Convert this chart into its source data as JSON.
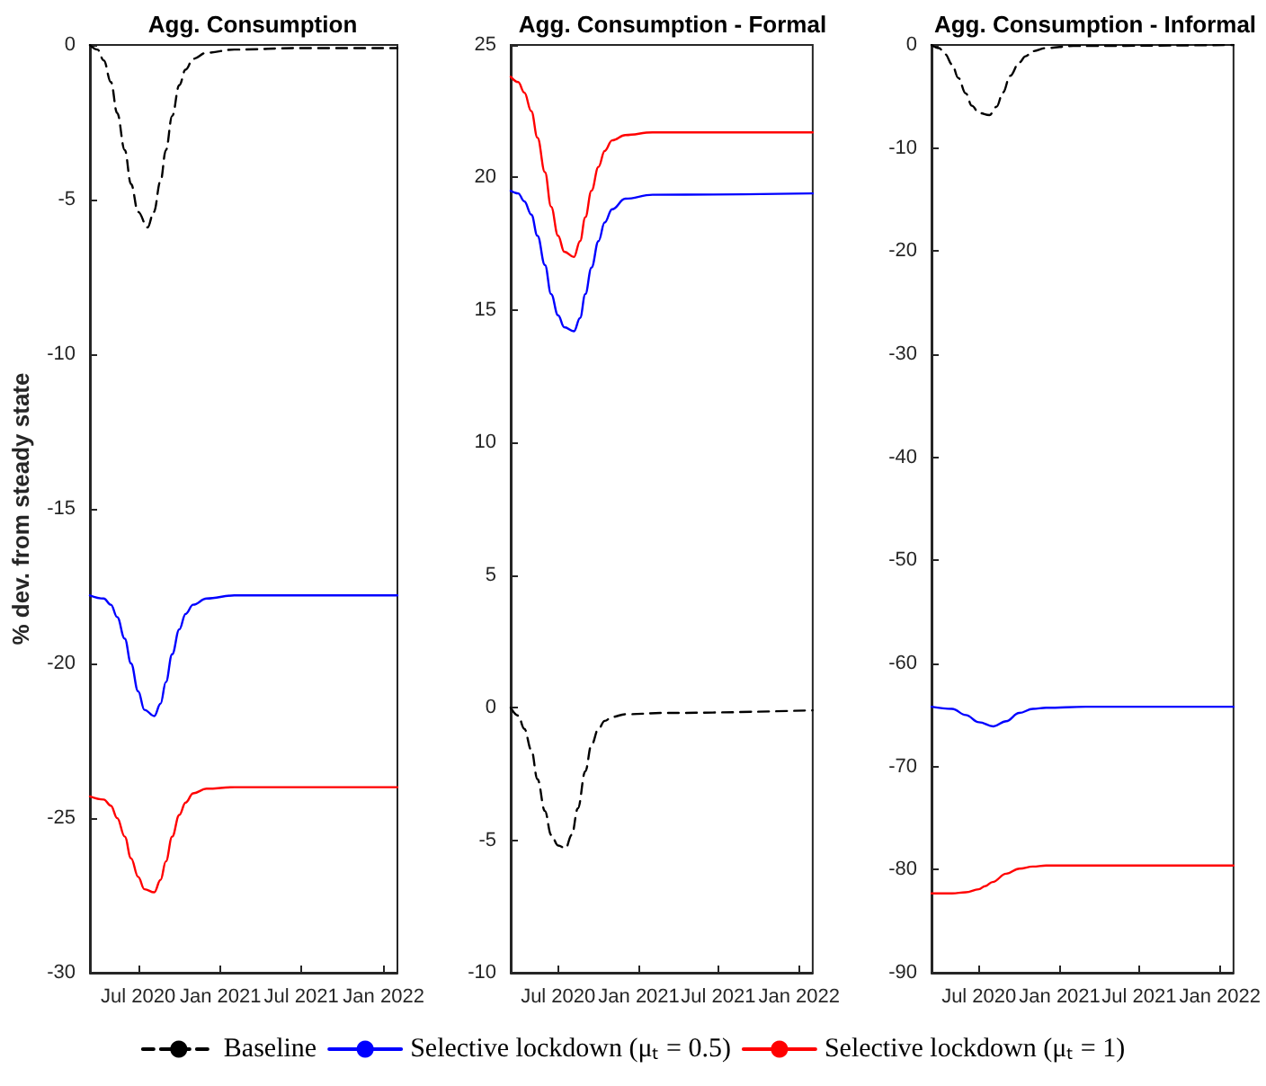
{
  "chart_data": [
    {
      "type": "line",
      "title": "Agg. Consumption",
      "ylabel": "% dev. from steady state",
      "xlim": [
        "2020-03-15",
        "2022-02-01"
      ],
      "xticks": [
        {
          "value": "2020-07-01",
          "label": "Jul 2020"
        },
        {
          "value": "2021-01-01",
          "label": "Jan 2021"
        },
        {
          "value": "2021-07-01",
          "label": "Jul 2021"
        },
        {
          "value": "2022-01-01",
          "label": "Jan 2022"
        }
      ],
      "ylim": [
        -30,
        0
      ],
      "yticks": [
        -30,
        -25,
        -20,
        -15,
        -10,
        -5,
        0
      ],
      "legend": "bottom",
      "series": [
        {
          "name": "Baseline",
          "color": "#000000",
          "line_style": "dashed",
          "x": [
            "2020-03-15",
            "2020-04-01",
            "2020-04-15",
            "2020-05-01",
            "2020-05-15",
            "2020-06-01",
            "2020-06-15",
            "2020-07-01",
            "2020-07-22",
            "2020-08-05",
            "2020-08-20",
            "2020-09-01",
            "2020-09-15",
            "2020-10-01",
            "2020-10-15",
            "2020-11-01",
            "2020-12-01",
            "2021-02-01",
            "2021-07-01",
            "2022-02-01"
          ],
          "values": [
            0,
            -0.15,
            -0.5,
            -1.2,
            -2.2,
            -3.4,
            -4.5,
            -5.4,
            -5.9,
            -5.4,
            -4.4,
            -3.4,
            -2.3,
            -1.3,
            -0.8,
            -0.45,
            -0.25,
            -0.15,
            -0.1,
            -0.1
          ]
        },
        {
          "name": "Selective lockdown (μₜ = 0.5)",
          "color": "#0000ff",
          "line_style": "solid",
          "x": [
            "2020-03-15",
            "2020-04-15",
            "2020-05-01",
            "2020-05-15",
            "2020-06-01",
            "2020-06-15",
            "2020-07-01",
            "2020-07-15",
            "2020-08-06",
            "2020-08-20",
            "2020-09-01",
            "2020-09-15",
            "2020-10-01",
            "2020-10-15",
            "2020-11-01",
            "2020-12-01",
            "2021-02-01",
            "2022-02-01"
          ],
          "values": [
            -17.8,
            -17.9,
            -18.1,
            -18.5,
            -19.2,
            -20,
            -20.9,
            -21.5,
            -21.7,
            -21.3,
            -20.6,
            -19.7,
            -18.9,
            -18.4,
            -18.1,
            -17.9,
            -17.8,
            -17.8
          ]
        },
        {
          "name": "Selective lockdown (μₜ = 1)",
          "color": "#ff0000",
          "line_style": "solid",
          "x": [
            "2020-03-15",
            "2020-04-15",
            "2020-05-01",
            "2020-05-15",
            "2020-06-01",
            "2020-06-15",
            "2020-07-01",
            "2020-07-15",
            "2020-08-06",
            "2020-08-20",
            "2020-09-01",
            "2020-09-15",
            "2020-10-01",
            "2020-10-15",
            "2020-11-01",
            "2020-12-01",
            "2021-02-01",
            "2022-02-01"
          ],
          "values": [
            -24.3,
            -24.4,
            -24.6,
            -25,
            -25.6,
            -26.3,
            -26.9,
            -27.3,
            -27.4,
            -27,
            -26.4,
            -25.6,
            -24.9,
            -24.5,
            -24.2,
            -24.05,
            -24,
            -24
          ]
        }
      ]
    },
    {
      "type": "line",
      "title": "Agg. Consumption - Formal",
      "xlim": [
        "2020-03-15",
        "2022-02-01"
      ],
      "xticks": [
        {
          "value": "2020-07-01",
          "label": "Jul 2020"
        },
        {
          "value": "2021-01-01",
          "label": "Jan 2021"
        },
        {
          "value": "2021-07-01",
          "label": "Jul 2021"
        },
        {
          "value": "2022-01-01",
          "label": "Jan 2022"
        }
      ],
      "ylim": [
        -10,
        25
      ],
      "yticks": [
        -10,
        -5,
        0,
        5,
        10,
        15,
        20,
        25
      ],
      "series": [
        {
          "color": "#000000",
          "line_style": "dashed",
          "x": [
            "2020-03-15",
            "2020-04-01",
            "2020-04-15",
            "2020-05-01",
            "2020-05-15",
            "2020-06-01",
            "2020-06-15",
            "2020-07-01",
            "2020-07-18",
            "2020-08-01",
            "2020-08-15",
            "2020-09-01",
            "2020-09-15",
            "2020-10-01",
            "2020-10-15",
            "2020-11-01",
            "2020-12-01",
            "2021-03-01",
            "2022-02-01"
          ],
          "values": [
            0,
            -0.3,
            -0.8,
            -1.6,
            -2.7,
            -3.9,
            -4.8,
            -5.2,
            -5.3,
            -4.8,
            -3.8,
            -2.4,
            -1.4,
            -0.8,
            -0.5,
            -0.35,
            -0.25,
            -0.2,
            -0.1
          ]
        },
        {
          "color": "#0000ff",
          "line_style": "solid",
          "x": [
            "2020-03-15",
            "2020-04-01",
            "2020-04-15",
            "2020-05-01",
            "2020-05-15",
            "2020-06-01",
            "2020-06-15",
            "2020-07-01",
            "2020-07-15",
            "2020-08-06",
            "2020-08-20",
            "2020-09-01",
            "2020-09-15",
            "2020-10-01",
            "2020-10-15",
            "2020-11-01",
            "2020-12-01",
            "2021-02-01",
            "2022-02-01"
          ],
          "values": [
            19.5,
            19.4,
            19.1,
            18.6,
            17.8,
            16.7,
            15.6,
            14.8,
            14.35,
            14.2,
            14.7,
            15.6,
            16.6,
            17.6,
            18.3,
            18.8,
            19.2,
            19.35,
            19.4
          ]
        },
        {
          "color": "#ff0000",
          "line_style": "solid",
          "x": [
            "2020-03-15",
            "2020-04-01",
            "2020-04-15",
            "2020-05-01",
            "2020-05-15",
            "2020-06-01",
            "2020-06-15",
            "2020-07-01",
            "2020-07-15",
            "2020-08-06",
            "2020-08-20",
            "2020-09-01",
            "2020-09-15",
            "2020-10-01",
            "2020-10-15",
            "2020-11-01",
            "2020-12-01",
            "2021-02-01",
            "2022-02-01"
          ],
          "values": [
            23.8,
            23.6,
            23.2,
            22.5,
            21.5,
            20.2,
            18.9,
            17.8,
            17.2,
            17,
            17.6,
            18.5,
            19.5,
            20.4,
            21,
            21.4,
            21.6,
            21.7,
            21.7
          ]
        }
      ]
    },
    {
      "type": "line",
      "title": "Agg. Consumption - Informal",
      "xlim": [
        "2020-03-15",
        "2022-02-01"
      ],
      "xticks": [
        {
          "value": "2020-07-01",
          "label": "Jul 2020"
        },
        {
          "value": "2021-01-01",
          "label": "Jan 2021"
        },
        {
          "value": "2021-07-01",
          "label": "Jul 2021"
        },
        {
          "value": "2022-01-01",
          "label": "Jan 2022"
        }
      ],
      "ylim": [
        -90,
        0
      ],
      "yticks": [
        -90,
        -80,
        -70,
        -60,
        -50,
        -40,
        -30,
        -20,
        -10,
        0
      ],
      "series": [
        {
          "color": "#000000",
          "line_style": "dashed",
          "x": [
            "2020-03-15",
            "2020-04-01",
            "2020-04-15",
            "2020-05-01",
            "2020-05-15",
            "2020-06-01",
            "2020-06-15",
            "2020-07-01",
            "2020-07-25",
            "2020-08-10",
            "2020-08-25",
            "2020-09-10",
            "2020-10-01",
            "2020-10-15",
            "2020-11-01",
            "2020-12-01",
            "2021-02-01",
            "2022-02-01"
          ],
          "values": [
            0,
            -0.3,
            -0.9,
            -1.9,
            -3.2,
            -4.7,
            -5.9,
            -6.6,
            -6.8,
            -6,
            -4.6,
            -3,
            -1.7,
            -1.1,
            -0.6,
            -0.3,
            -0.1,
            0
          ]
        },
        {
          "color": "#0000ff",
          "line_style": "solid",
          "x": [
            "2020-03-15",
            "2020-05-01",
            "2020-06-01",
            "2020-07-01",
            "2020-08-03",
            "2020-09-01",
            "2020-10-01",
            "2020-11-01",
            "2020-12-01",
            "2021-03-01",
            "2022-02-01"
          ],
          "values": [
            -64.2,
            -64.4,
            -65,
            -65.7,
            -66.1,
            -65.6,
            -64.8,
            -64.4,
            -64.3,
            -64.2,
            -64.2
          ]
        },
        {
          "color": "#ff0000",
          "line_style": "solid",
          "x": [
            "2020-03-15",
            "2020-05-01",
            "2020-06-01",
            "2020-07-01",
            "2020-07-15",
            "2020-08-01",
            "2020-09-01",
            "2020-10-01",
            "2020-11-01",
            "2020-12-01",
            "2022-02-01"
          ],
          "values": [
            -82.3,
            -82.3,
            -82.2,
            -81.9,
            -81.6,
            -81.2,
            -80.4,
            -79.9,
            -79.7,
            -79.6,
            -79.6
          ]
        }
      ]
    }
  ]
}
